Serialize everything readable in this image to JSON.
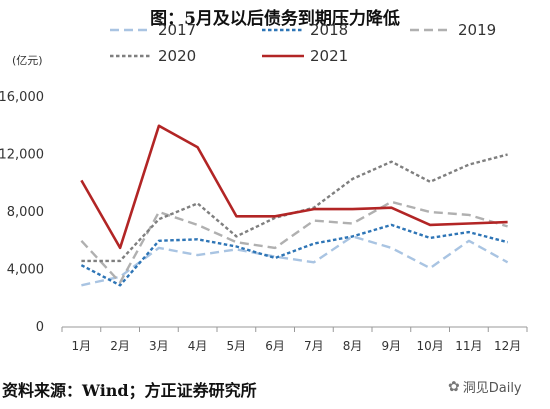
{
  "page": {
    "title": "图：5月及以后债务到期压力降低",
    "source": "资料来源：Wind；方正证券研究所",
    "watermark": "洞见Daily",
    "watermark_icon": "wechat-icon"
  },
  "chart_data": {
    "type": "line",
    "title": "图：5月及以后债务到期压力降低",
    "unit_label": "(亿元)",
    "xlabel": "",
    "ylabel": "",
    "categories": [
      "1月",
      "2月",
      "3月",
      "4月",
      "5月",
      "6月",
      "7月",
      "8月",
      "9月",
      "10月",
      "11月",
      "12月"
    ],
    "ylim": [
      0,
      16000
    ],
    "yticks": [
      0,
      4000,
      8000,
      12000,
      16000
    ],
    "ytick_labels": [
      "0",
      "4,000",
      "8,000",
      "12,000",
      "16,000"
    ],
    "grid": false,
    "legend_placement": "top",
    "series": [
      {
        "name": "2017",
        "color": "#a9c4e2",
        "dash": "dash",
        "values": [
          2900,
          3500,
          5500,
          5000,
          5400,
          4900,
          4500,
          6300,
          5500,
          4100,
          6000,
          4500
        ]
      },
      {
        "name": "2018",
        "color": "#2e75b6",
        "dash": "dot",
        "values": [
          4300,
          2900,
          6000,
          6100,
          5600,
          4800,
          5800,
          6300,
          7100,
          6200,
          6600,
          5900
        ]
      },
      {
        "name": "2019",
        "color": "#b0b0b0",
        "dash": "dash",
        "values": [
          6000,
          3100,
          8000,
          7100,
          5900,
          5500,
          7400,
          7200,
          8700,
          8000,
          7800,
          7000
        ]
      },
      {
        "name": "2020",
        "color": "#7f7f7f",
        "dash": "dot",
        "values": [
          4600,
          4600,
          7500,
          8600,
          6300,
          7600,
          8300,
          10300,
          11500,
          10100,
          11300,
          12000
        ]
      },
      {
        "name": "2021",
        "color": "#b22525",
        "dash": "solid",
        "values": [
          10200,
          5500,
          14000,
          12500,
          7700,
          7700,
          8200,
          8200,
          8300,
          7100,
          7200,
          7300
        ]
      }
    ]
  }
}
